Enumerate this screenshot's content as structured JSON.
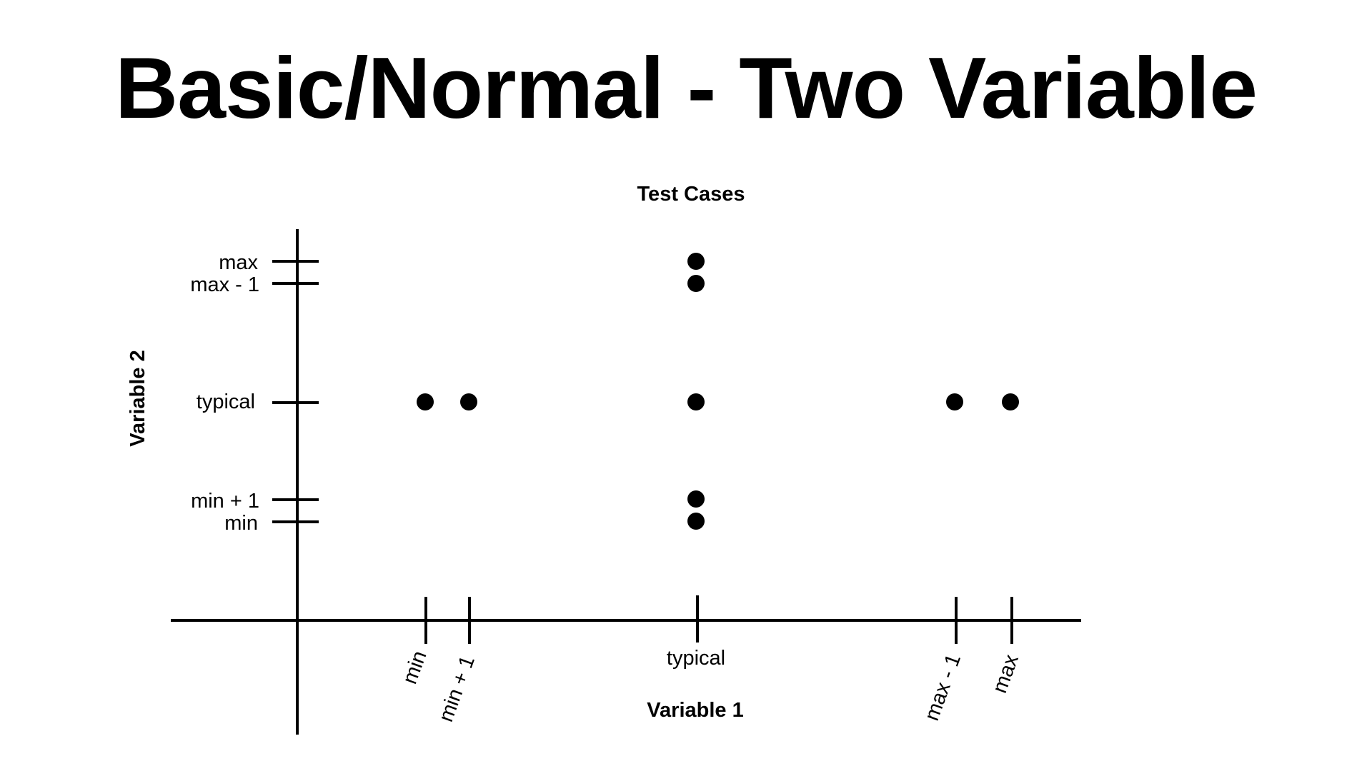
{
  "title": "Basic/Normal - Two Variable",
  "diagram": {
    "caption": "Test Cases",
    "x_axis_label": "Variable 1",
    "y_axis_label": "Variable 2",
    "x_ticks": [
      {
        "id": "min",
        "label": "min"
      },
      {
        "id": "min-plus-1",
        "label": "min + 1"
      },
      {
        "id": "typical",
        "label": "typical"
      },
      {
        "id": "max-minus-1",
        "label": "max - 1"
      },
      {
        "id": "max",
        "label": "max"
      }
    ],
    "y_ticks": [
      {
        "id": "max",
        "label": "max"
      },
      {
        "id": "max-minus-1",
        "label": "max - 1"
      },
      {
        "id": "typical",
        "label": "typical"
      },
      {
        "id": "min-plus-1",
        "label": "min + 1"
      },
      {
        "id": "min",
        "label": "min"
      }
    ],
    "test_points": [
      {
        "x": "typical",
        "y": "max"
      },
      {
        "x": "typical",
        "y": "max - 1"
      },
      {
        "x": "min",
        "y": "typical"
      },
      {
        "x": "min + 1",
        "y": "typical"
      },
      {
        "x": "typical",
        "y": "typical"
      },
      {
        "x": "max - 1",
        "y": "typical"
      },
      {
        "x": "max",
        "y": "typical"
      },
      {
        "x": "typical",
        "y": "min + 1"
      },
      {
        "x": "typical",
        "y": "min"
      }
    ]
  }
}
